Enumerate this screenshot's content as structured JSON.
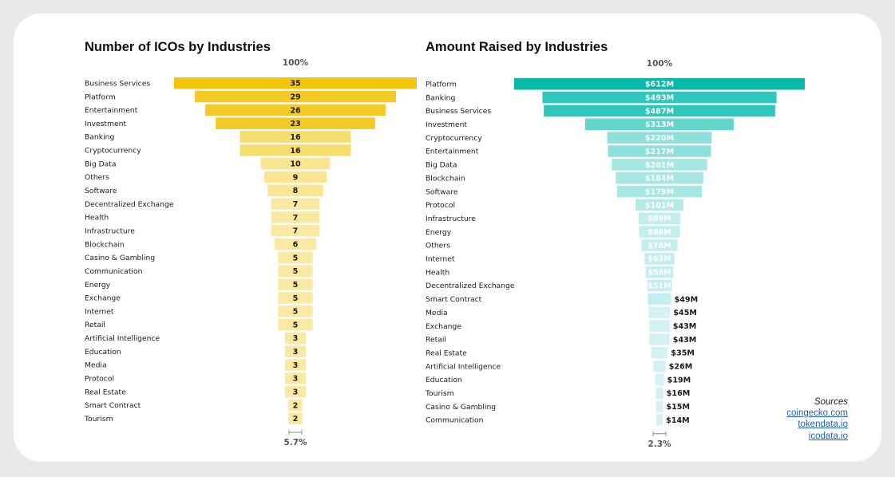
{
  "chart_data": [
    {
      "type": "bar",
      "title": "Number of ICOs by Industries",
      "top_label": "100%",
      "bottom_label": "5.7%",
      "categories": [
        "Business Services",
        "Platform",
        "Entertainment",
        "Investment",
        "Banking",
        "Cryptocurrency",
        "Big Data",
        "Others",
        "Software",
        "Decentralized Exchange",
        "Health",
        "Infrastructure",
        "Blockchain",
        "Casino & Gambling",
        "Communication",
        "Energy",
        "Exchange",
        "Internet",
        "Retail",
        "Artificial Intelligence",
        "Education",
        "Media",
        "Protocol",
        "Real Estate",
        "Smart Contract",
        "Tourism"
      ],
      "values": [
        35,
        29,
        26,
        23,
        16,
        16,
        10,
        9,
        8,
        7,
        7,
        7,
        6,
        5,
        5,
        5,
        5,
        5,
        5,
        3,
        3,
        3,
        3,
        3,
        2,
        2
      ],
      "value_labels": [
        "35",
        "29",
        "26",
        "23",
        "16",
        "16",
        "10",
        "9",
        "8",
        "7",
        "7",
        "7",
        "6",
        "5",
        "5",
        "5",
        "5",
        "5",
        "5",
        "3",
        "3",
        "3",
        "3",
        "3",
        "2",
        "2"
      ],
      "colors": [
        "#f3c60d",
        "#f4ca27",
        "#f4ca27",
        "#f4ca27",
        "#f7dc6e",
        "#f7dc6e",
        "#f9e592",
        "#f9e592",
        "#f9e592",
        "#fae9a3",
        "#fae9a3",
        "#fae9a3",
        "#fae9a3",
        "#fae9a3",
        "#fae9a3",
        "#fae9a3",
        "#fae9a3",
        "#fae9a3",
        "#fae9a3",
        "#fae9a3",
        "#fae9a3",
        "#fae9a3",
        "#fae9a3",
        "#fae9a3",
        "#fae9a3",
        "#fae9a3"
      ]
    },
    {
      "type": "bar",
      "title": "Amount Raised by Industries",
      "top_label": "100%",
      "bottom_label": "2.3%",
      "categories": [
        "Platform",
        "Banking",
        "Business Services",
        "Investment",
        "Cryptocurrency",
        "Entertainment",
        "Big Data",
        "Blockchain",
        "Software",
        "Protocol",
        "Infrastructure",
        "Energy",
        "Others",
        "Internet",
        "Health",
        "Decentralized Exchange",
        "Smart Contract",
        "Media",
        "Exchange",
        "Retail",
        "Real Estate",
        "Artificial Intelligence",
        "Education",
        "Tourism",
        "Casino & Gambling",
        "Communication"
      ],
      "values": [
        612,
        493,
        487,
        313,
        220,
        217,
        201,
        184,
        179,
        101,
        89,
        86,
        76,
        63,
        58,
        51,
        49,
        45,
        43,
        43,
        35,
        26,
        19,
        16,
        15,
        14
      ],
      "value_labels": [
        "$612M",
        "$493M",
        "$487M",
        "$313M",
        "$220M",
        "$217M",
        "$201M",
        "$184M",
        "$179M",
        "$101M",
        "$89M",
        "$86M",
        "$76M",
        "$63M",
        "$58M",
        "$51M",
        "$49M",
        "$45M",
        "$43M",
        "$43M",
        "$35M",
        "$26M",
        "$19M",
        "$16M",
        "$15M",
        "$14M"
      ],
      "colors": [
        "#06b9a8",
        "#2dc7bb",
        "#2dc7bb",
        "#5fd5cc",
        "#8ee0dc",
        "#8ee0dc",
        "#a6e6e3",
        "#a6e6e3",
        "#a6e6e3",
        "#b6eaea",
        "#c2eef0",
        "#c2eef0",
        "#c2eef0",
        "#c2eef0",
        "#c2eef0",
        "#c2eef0",
        "#c2eef0",
        "#d4f2f5",
        "#d4f2f5",
        "#d4f2f5",
        "#d4f2f5",
        "#d4f2f5",
        "#d4f2f5",
        "#d4f2f5",
        "#d4f2f5",
        "#d4f2f5"
      ]
    }
  ],
  "sources": {
    "heading": "Sources",
    "links": [
      "coingecko.com",
      "tokendata.io",
      "icodata.io"
    ]
  }
}
